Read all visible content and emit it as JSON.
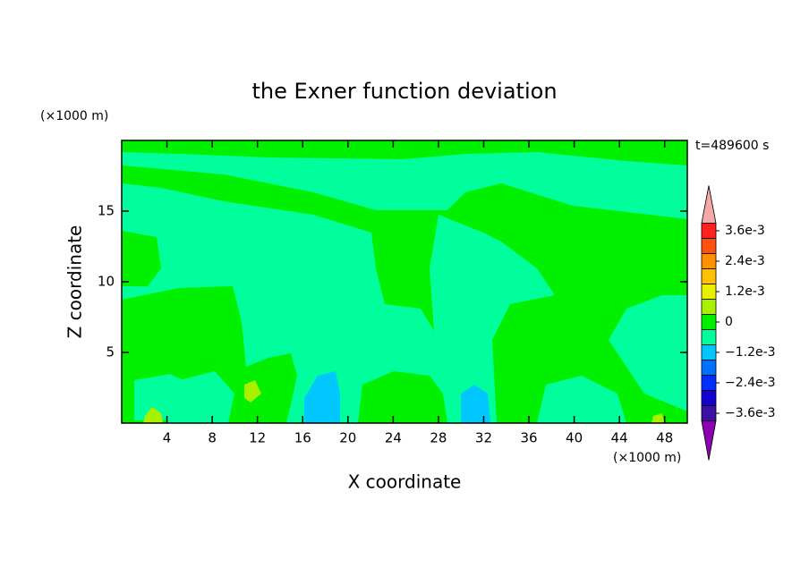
{
  "chart_data": {
    "type": "contour",
    "title": "the Exner function deviation",
    "xlabel": "X coordinate",
    "ylabel": "Z coordinate",
    "x_unit_label": "(×1000 m)",
    "y_unit_label": "(×1000 m)",
    "time_label": "t=489600 s",
    "xlim": [
      0,
      50
    ],
    "ylim": [
      0,
      20
    ],
    "xticks": [
      4,
      8,
      12,
      16,
      20,
      24,
      28,
      32,
      36,
      40,
      44,
      48
    ],
    "yticks": [
      5,
      10,
      15
    ],
    "colorbar": {
      "levels": [
        -0.0036,
        -0.003,
        -0.0024,
        -0.0018,
        -0.0012,
        -0.0006,
        0,
        0.0006,
        0.0012,
        0.0018,
        0.0024,
        0.003,
        0.0036
      ],
      "colors": [
        "#3c10a0",
        "#1400d0",
        "#0030ff",
        "#0070ff",
        "#00c8ff",
        "#00ff9c",
        "#00f000",
        "#a8f000",
        "#e8f000",
        "#ffc000",
        "#ff9000",
        "#ff5010",
        "#ff2020"
      ],
      "over_color": "#f4a8a8",
      "under_color": "#8c00b0",
      "clim": [
        -0.0039,
        0.0039
      ],
      "ticks": [
        {
          "value": 0.0036,
          "label": "3.6e-3"
        },
        {
          "value": 0.0024,
          "label": "2.4e-3"
        },
        {
          "value": 0.0012,
          "label": "1.2e-3"
        },
        0,
        {
          "value": -0.0012,
          "label": "−1.2e-3"
        },
        {
          "value": -0.0024,
          "label": "−2.4e-3"
        },
        {
          "value": -0.0036,
          "label": "−3.6e-3"
        }
      ]
    }
  }
}
